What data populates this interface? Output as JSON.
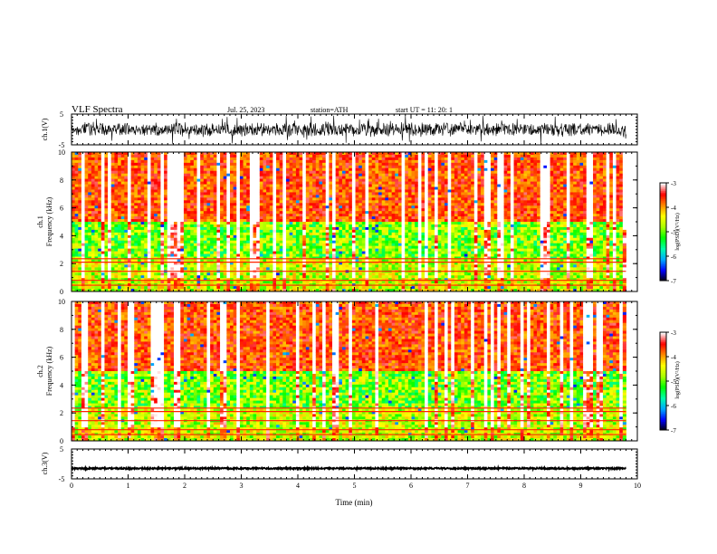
{
  "header": {
    "title": "VLF  Spectra",
    "date": "Jul.  25, 2023",
    "station": "station=ATH",
    "start_ut": "start  UT  =    11: 20: 1"
  },
  "chart_data": [
    {
      "type": "line",
      "panel": "ch1-waveform",
      "ylabel": "ch.1(V)",
      "ylim": [
        -5,
        5
      ],
      "yticks": [
        "5",
        "-5"
      ],
      "xlim": [
        0,
        10
      ],
      "data_end": 9.8,
      "signal_amplitude_range": [
        -2.5,
        2.5
      ],
      "color": "#000000"
    },
    {
      "type": "heatmap",
      "panel": "ch1-spectrogram",
      "ylabel_channel": "ch.1",
      "ylabel": "Frequency  (kHz)",
      "ylim": [
        0,
        10
      ],
      "yticks": [
        "0",
        "2",
        "4",
        "6",
        "8",
        "10"
      ],
      "xlim": [
        0,
        10
      ],
      "data_end": 9.8,
      "colorbar": {
        "label": "log(PSD)(V²/Hz)",
        "range": [
          -7,
          -3
        ],
        "ticks": [
          "-3",
          "-4",
          "-5",
          "-6",
          "-7"
        ]
      }
    },
    {
      "type": "heatmap",
      "panel": "ch2-spectrogram",
      "ylabel_channel": "ch.2",
      "ylabel": "Frequency  (kHz)",
      "ylim": [
        0,
        10
      ],
      "yticks": [
        "0",
        "2",
        "4",
        "6",
        "8",
        "10"
      ],
      "xlim": [
        0,
        10
      ],
      "data_end": 9.8,
      "colorbar": {
        "label": "log(PSD)(V²/Hz)",
        "range": [
          -7,
          -3
        ],
        "ticks": [
          "-3",
          "-4",
          "-5",
          "-6",
          "-7"
        ]
      }
    },
    {
      "type": "line",
      "panel": "ch3-waveform",
      "ylabel": "ch.3(V)",
      "ylim": [
        -5,
        5
      ],
      "yticks": [
        "5",
        "-5"
      ],
      "xlim": [
        0,
        10
      ],
      "data_end": 9.8,
      "signal_level": -1.5,
      "color": "#000000"
    }
  ],
  "xaxis": {
    "label": "Time  (min)",
    "ticks": [
      "0",
      "1",
      "2",
      "3",
      "4",
      "5",
      "6",
      "7",
      "8",
      "9",
      "10"
    ]
  },
  "colors": {
    "colormap": [
      "#000000",
      "#0000ff",
      "#00aaff",
      "#00ffaa",
      "#00ff00",
      "#aaff00",
      "#ffff00",
      "#ff8800",
      "#ff0000",
      "#ffffff"
    ]
  }
}
